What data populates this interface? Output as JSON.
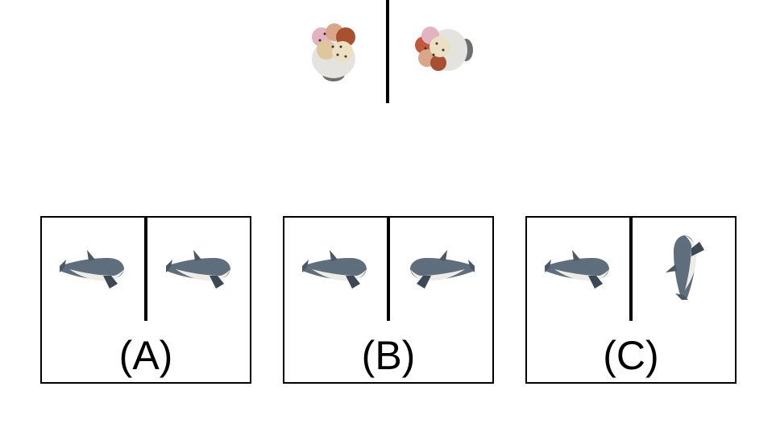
{
  "options": [
    {
      "label": "(A)"
    },
    {
      "label": "(B)"
    },
    {
      "label": "(C)"
    }
  ]
}
